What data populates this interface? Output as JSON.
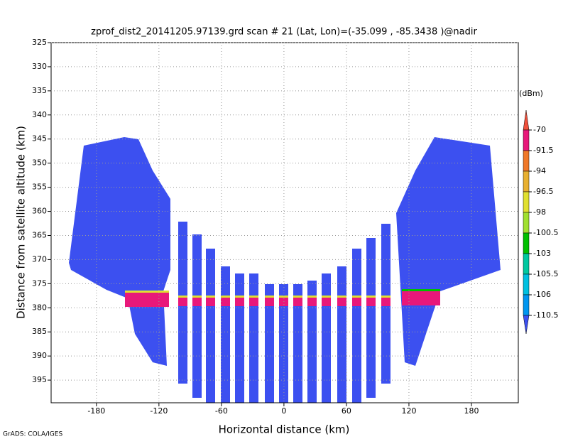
{
  "chart_data": {
    "type": "heatmap",
    "title": "zprof_dist2_20141205.97139.grd  scan # 21  (Lat, Lon)=(-35.099 , -85.3438 )@nadir",
    "x_label": "Horizontal distance (km)",
    "y_label": "Distance from satellite altitude (km)",
    "xlim": [
      -223.5,
      225
    ],
    "xticks": [
      -180,
      -120,
      -60,
      0,
      60,
      120,
      180
    ],
    "ylim": [
      325,
      399.7
    ],
    "yticks": [
      325,
      330,
      335,
      340,
      345,
      350,
      355,
      360,
      365,
      370,
      375,
      380,
      385,
      390,
      395
    ],
    "y_inverted": true,
    "grid": true,
    "colorbar": {
      "label": "(dBm)",
      "levels": [
        -70,
        -91.5,
        -94,
        -96.5,
        -98,
        -100.5,
        -103,
        -105.5,
        -106,
        -110.5
      ],
      "colors": [
        "#f0503c",
        "#e8187a",
        "#f07828",
        "#e8b030",
        "#e0e030",
        "#a0e030",
        "#00c000",
        "#00c8a0",
        "#00c0e0",
        "#0096f0",
        "#3c50f0"
      ]
    },
    "footer": "GrADS: COLA/IGES"
  }
}
